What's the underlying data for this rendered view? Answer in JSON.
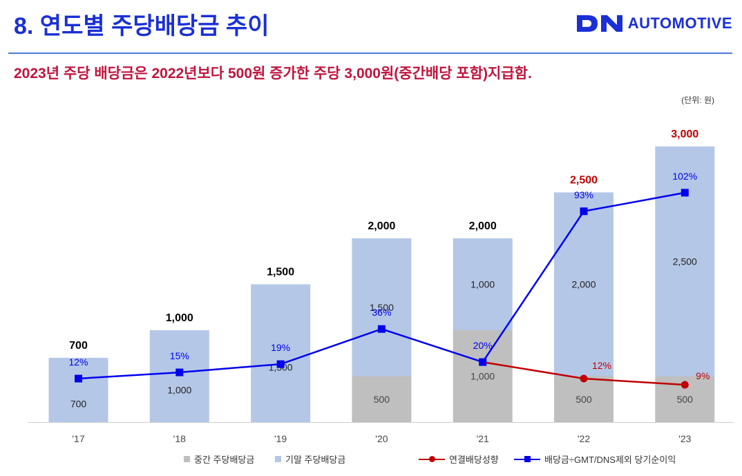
{
  "header": {
    "title": "8. 연도별 주당배당금 추이",
    "logo_text": "AUTOMOTIVE",
    "logo_mark": "DN",
    "subtitle": "2023년 주당 배당금은 2022년보다 500원 증가한 주당 3,000원(중간배당 포함)지급함.",
    "unit": "(단위: 원)"
  },
  "colors": {
    "title_blue": "#1a2fd6",
    "subtitle_red": "#c0143c",
    "interim_bar": "#bfbfbf",
    "final_bar": "#b4c7e7",
    "payout_line": "#c00000",
    "ratio_line": "#0000ee"
  },
  "chart_data": {
    "type": "bar",
    "stacked": true,
    "categories": [
      "'17",
      "'18",
      "'19",
      "'20",
      "'21",
      "'22",
      "'23"
    ],
    "series": [
      {
        "name": "중간 주당배당금",
        "values": [
          0,
          0,
          0,
          500,
          1000,
          500,
          500
        ],
        "labels": [
          "",
          "",
          "",
          "500",
          "1,000",
          "500",
          "500"
        ]
      },
      {
        "name": "기말 주당배당금",
        "values": [
          700,
          1000,
          1500,
          1500,
          1000,
          2000,
          2500
        ],
        "labels": [
          "700",
          "1,000",
          "1,500",
          "1,500",
          "1,000",
          "2,000",
          "2,500"
        ]
      }
    ],
    "totals": [
      700,
      1000,
      1500,
      2000,
      2000,
      2500,
      3000
    ],
    "total_labels": [
      "700",
      "1,000",
      "1,500",
      "2,000",
      "2,000",
      "2,500",
      "3,000"
    ],
    "total_highlight": [
      false,
      false,
      false,
      false,
      false,
      true,
      true
    ],
    "lines": [
      {
        "name": "배당금÷GMT/DNS제외 당기순이익",
        "values": [
          12,
          15,
          19,
          36,
          20,
          93,
          102
        ],
        "labels": [
          "12%",
          "15%",
          "19%",
          "36%",
          "20%",
          "93%",
          "102%"
        ]
      },
      {
        "name": "연결배당성향",
        "values": [
          null,
          null,
          null,
          null,
          20,
          12,
          9
        ],
        "labels": [
          "",
          "",
          "",
          "",
          "",
          "12%",
          "9%"
        ]
      }
    ],
    "ylim": [
      0,
      3000
    ]
  },
  "legend": {
    "interim": "중간 주당배당금",
    "final": "기말 주당배당금",
    "payout": "연결배당성향",
    "ratio": "배당금÷GMT/DNS제외 당기순이익"
  }
}
